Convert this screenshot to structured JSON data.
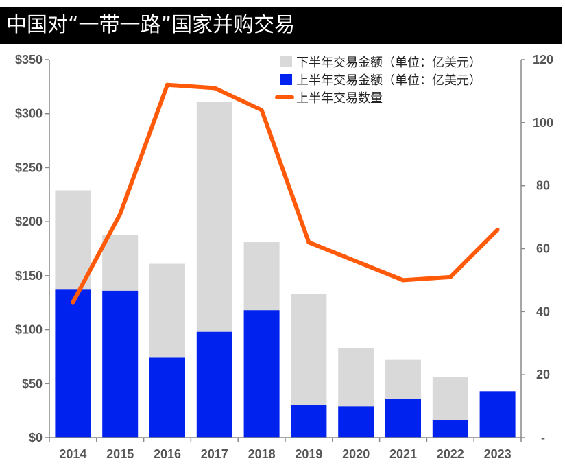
{
  "title": "中国对“一带一路”国家并购交易",
  "chart_data": {
    "type": "bar",
    "stacked": true,
    "categories": [
      "2014",
      "2015",
      "2016",
      "2017",
      "2018",
      "2019",
      "2020",
      "2021",
      "2022",
      "2023"
    ],
    "series": [
      {
        "name": "上半年交易金额（单位：亿美元）",
        "type": "bar",
        "axis": "left",
        "color": "#0022ee",
        "values": [
          137,
          136,
          74,
          98,
          118,
          30,
          29,
          36,
          16,
          43
        ]
      },
      {
        "name": "下半年交易金额（单位：亿美元）",
        "type": "bar",
        "axis": "left",
        "color": "#d9d9d9",
        "values": [
          92,
          52,
          87,
          213,
          63,
          103,
          54,
          36,
          40,
          0
        ]
      },
      {
        "name": "上半年交易数量",
        "type": "line",
        "axis": "right",
        "color": "#ff5a0a",
        "values": [
          43,
          71,
          112,
          111,
          104,
          62,
          null,
          50,
          51,
          66
        ]
      }
    ],
    "yLeft": {
      "min": 0,
      "max": 350,
      "step": 50,
      "tickLabels": [
        "$0",
        "$50",
        "$100",
        "$150",
        "$200",
        "$250",
        "$300",
        "$350"
      ]
    },
    "yRight": {
      "min": 0,
      "max": 120,
      "step": 20,
      "tickLabels": [
        "-",
        "20",
        "40",
        "60",
        "80",
        "100",
        "120"
      ]
    },
    "legend": {
      "position": "top-right",
      "entries": [
        "下半年交易金额（单位：亿美元）",
        "上半年交易金额（单位：亿美元）",
        "上半年交易数量"
      ]
    },
    "grid": false
  }
}
